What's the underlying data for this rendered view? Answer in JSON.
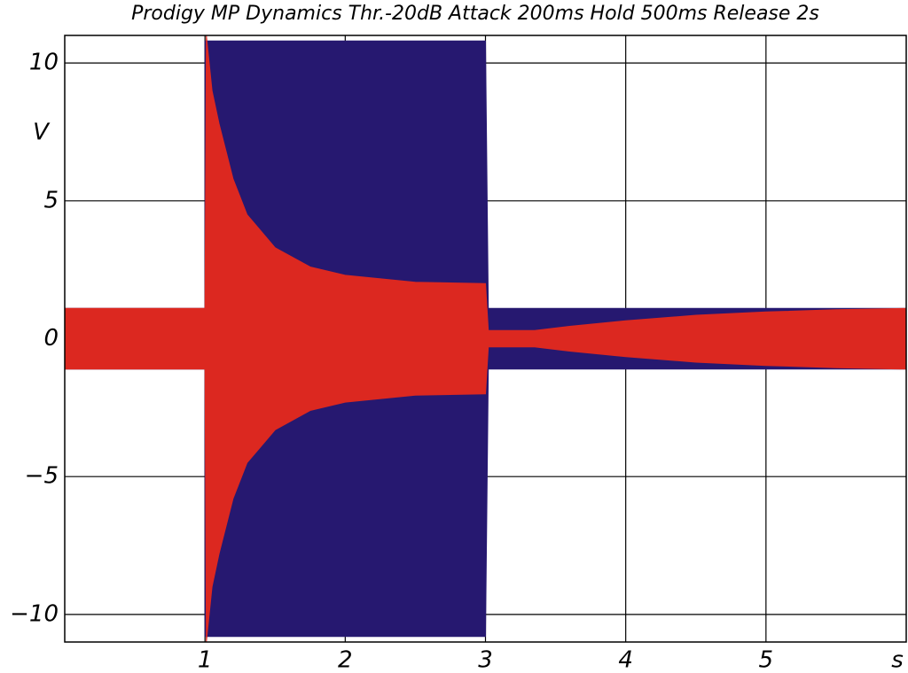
{
  "chart_data": {
    "type": "band",
    "title": "Prodigy MP Dynamics Thr.-20dB Attack 200ms Hold 500ms Release 2s",
    "x_label": "s",
    "y_label": "V",
    "xlim": [
      0,
      6
    ],
    "ylim": [
      -11,
      11
    ],
    "xticks": [
      1,
      2,
      3,
      4,
      5
    ],
    "yticks": [
      {
        "value": -10,
        "label": "−10"
      },
      {
        "value": -5,
        "label": "−5"
      },
      0,
      5,
      10
    ],
    "grid": true,
    "series": [
      {
        "color": "#261870",
        "x": [
          0,
          1,
          1,
          1.02,
          3,
          3.02,
          6
        ],
        "upper": [
          1.1,
          1.1,
          10.8,
          10.8,
          10.8,
          1.1,
          1.1
        ],
        "lower": [
          -1.1,
          -1.1,
          -10.8,
          -10.8,
          -10.8,
          -1.1,
          -1.1
        ]
      },
      {
        "color": "#dc2820",
        "x": [
          0,
          1,
          1.01,
          1.05,
          1.1,
          1.2,
          1.3,
          1.5,
          1.75,
          2,
          2.5,
          3,
          3.02,
          3.35,
          3.6,
          4,
          4.5,
          5,
          5.5,
          6
        ],
        "upper": [
          1.1,
          1.1,
          11,
          9,
          7.8,
          5.8,
          4.5,
          3.3,
          2.6,
          2.3,
          2.05,
          2.0,
          0.3,
          0.3,
          0.45,
          0.65,
          0.85,
          0.97,
          1.05,
          1.1
        ],
        "lower": [
          -1.1,
          -1.1,
          -11,
          -9,
          -7.8,
          -5.8,
          -4.5,
          -3.3,
          -2.6,
          -2.3,
          -2.05,
          -2.0,
          -0.3,
          -0.3,
          -0.45,
          -0.65,
          -0.85,
          -0.97,
          -1.05,
          -1.1
        ]
      }
    ]
  }
}
